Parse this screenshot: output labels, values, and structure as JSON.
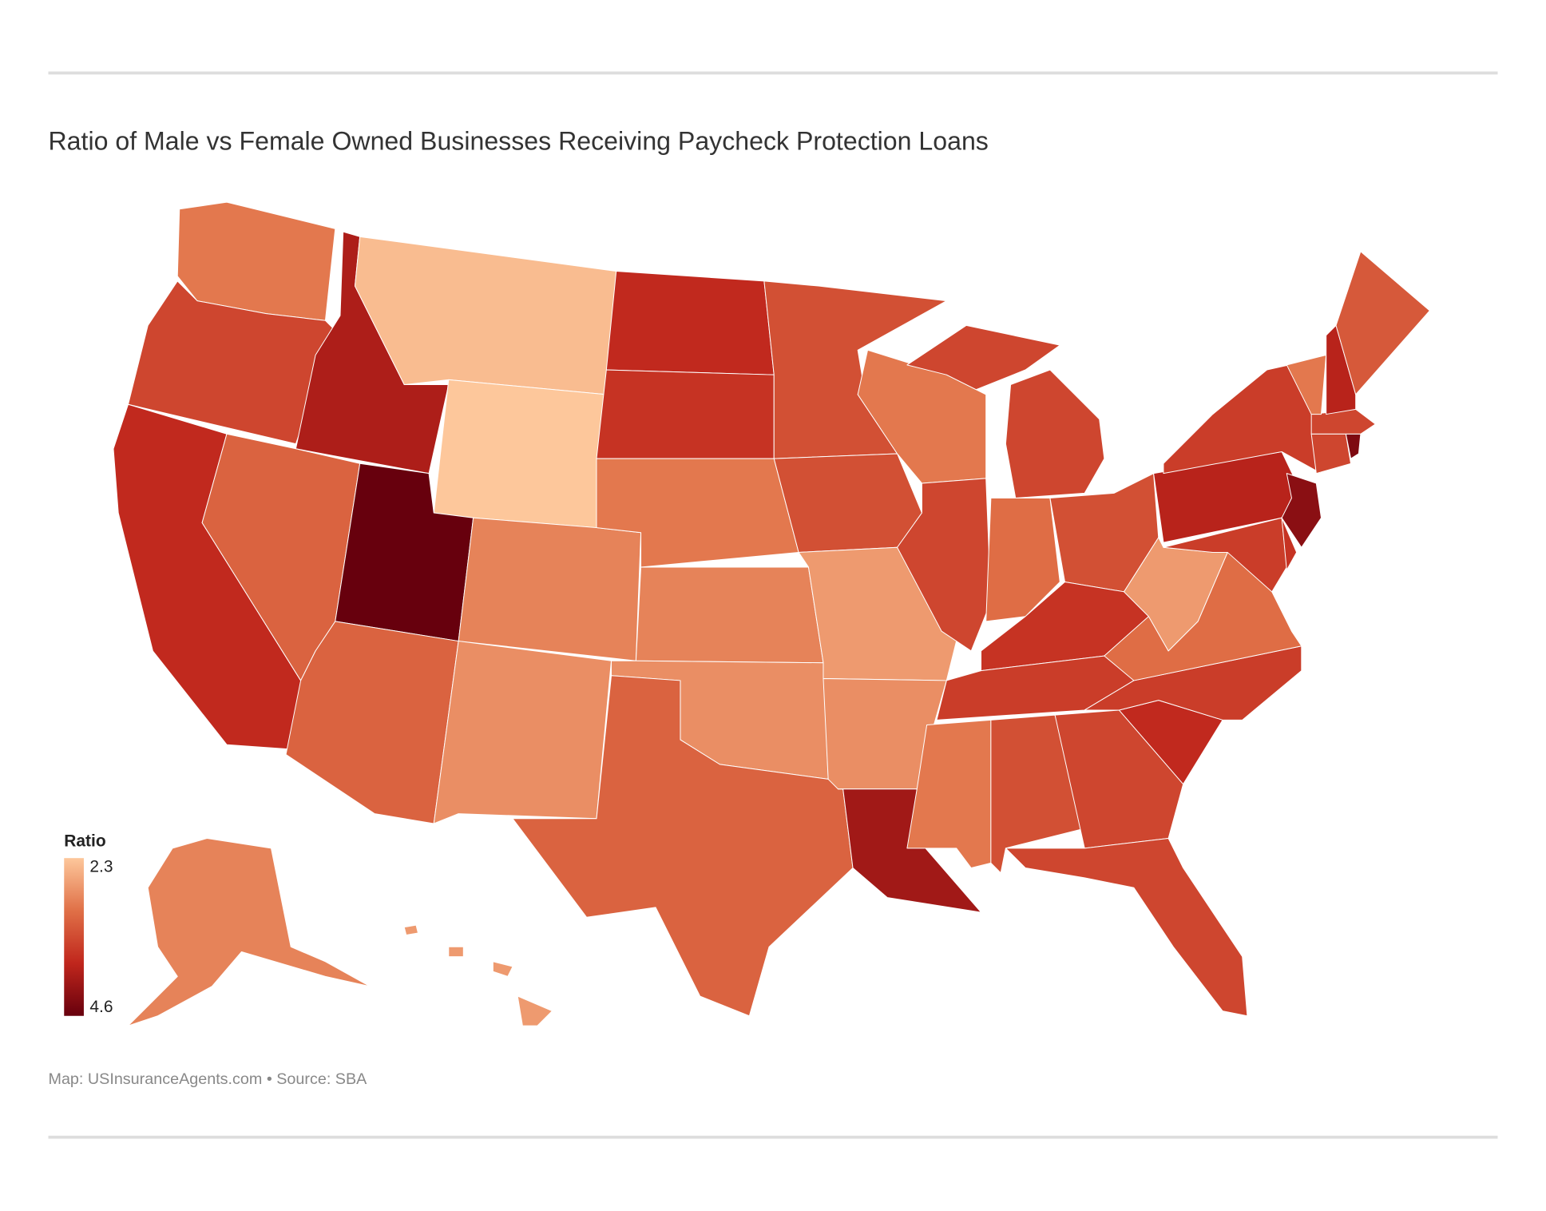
{
  "chart_data": {
    "type": "choropleth",
    "title": "Ratio of Male vs Female Owned Businesses Receiving Paycheck Protection Loans",
    "legend_title": "Ratio",
    "colorlim": [
      2.3,
      4.6
    ],
    "colors": [
      "#fdc79b",
      "#e07047",
      "#c0261c",
      "#67000d"
    ],
    "values": [
      3.0,
      3.5,
      3.8,
      4.0,
      3.2,
      2.4,
      2.3,
      4.6,
      3.2,
      2.9,
      2.8,
      3.8,
      3.7,
      3.0,
      2.9,
      2.8,
      3.2,
      3.4,
      3.4,
      2.7,
      2.8,
      4.1,
      3.0,
      3.5,
      3.5,
      3.1,
      3.4,
      3.7,
      3.6,
      3.0,
      3.4,
      3.5,
      3.5,
      3.8,
      3.6,
      3.1,
      2.7,
      3.9,
      3.6,
      3.6,
      3.7,
      4.3,
      3.5,
      4.4,
      3.5,
      3.0,
      3.9,
      3.3,
      2.9,
      2.7
    ],
    "source": "Map: USInsuranceAgents.com • Source: SBA"
  }
}
